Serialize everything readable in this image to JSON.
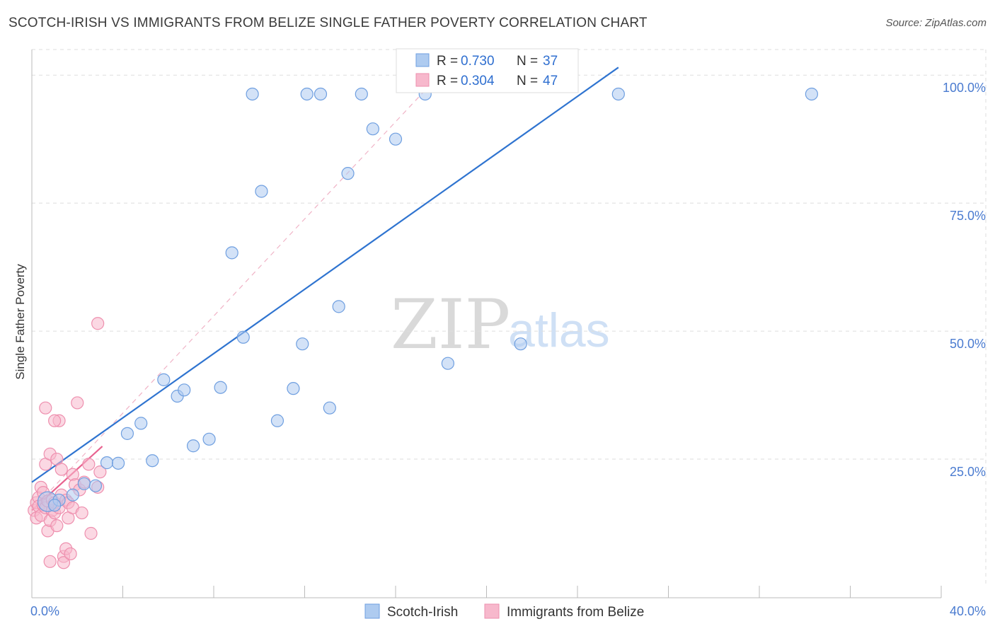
{
  "header": {
    "title": "SCOTCH-IRISH VS IMMIGRANTS FROM BELIZE SINGLE FATHER POVERTY CORRELATION CHART",
    "source": "Source: ZipAtlas.com"
  },
  "watermark": {
    "zip": "ZIP",
    "atlas": "atlas"
  },
  "legend": {
    "rows": [
      {
        "r_label": "R = ",
        "r_value": "0.730",
        "n_label": "N = ",
        "n_value": "37"
      },
      {
        "r_label": "R = ",
        "r_value": "0.304",
        "n_label": "N = ",
        "n_value": "47"
      }
    ]
  },
  "chart_data": {
    "type": "scatter",
    "title": "SCOTCH-IRISH VS IMMIGRANTS FROM BELIZE SINGLE FATHER POVERTY CORRELATION CHART",
    "xlabel": "",
    "ylabel": "Single Father Poverty",
    "xlim": [
      0,
      40
    ],
    "ylim": [
      0,
      105
    ],
    "x_tick_labels": [
      "0.0%",
      "40.0%"
    ],
    "y_ticks": [
      25,
      50,
      75,
      100
    ],
    "y_tick_labels": [
      "25.0%",
      "50.0%",
      "75.0%",
      "100.0%"
    ],
    "grid": true,
    "colors": {
      "scotch_fill": "#aecbf0",
      "scotch_stroke": "#6f9fe0",
      "scotch_line": "#2f74d0",
      "belize_fill": "#f7b8cc",
      "belize_stroke": "#ee8fae",
      "belize_line": "#e8628f"
    },
    "series": [
      {
        "name": "Scotch-Irish",
        "r": 0.73,
        "n": 37,
        "trend": {
          "x": [
            0.0,
            25.8
          ],
          "y": [
            20.5,
            101.5
          ]
        },
        "points": [
          [
            0.7,
            16.7
          ],
          [
            1.8,
            18.0
          ],
          [
            2.3,
            20.2
          ],
          [
            2.8,
            19.8
          ],
          [
            3.3,
            24.3
          ],
          [
            3.8,
            24.2
          ],
          [
            4.2,
            30.0
          ],
          [
            4.8,
            32.0
          ],
          [
            5.3,
            24.7
          ],
          [
            5.8,
            40.5
          ],
          [
            6.4,
            37.3
          ],
          [
            6.7,
            38.5
          ],
          [
            7.1,
            27.6
          ],
          [
            7.8,
            28.9
          ],
          [
            8.3,
            39.0
          ],
          [
            8.8,
            65.3
          ],
          [
            9.3,
            48.8
          ],
          [
            9.7,
            96.3
          ],
          [
            10.1,
            77.3
          ],
          [
            10.8,
            32.5
          ],
          [
            11.5,
            38.8
          ],
          [
            11.9,
            47.5
          ],
          [
            12.1,
            96.3
          ],
          [
            12.7,
            96.3
          ],
          [
            13.1,
            35.0
          ],
          [
            13.5,
            54.8
          ],
          [
            13.9,
            80.8
          ],
          [
            14.5,
            96.3
          ],
          [
            15.0,
            89.5
          ],
          [
            16.0,
            87.5
          ],
          [
            17.3,
            96.3
          ],
          [
            18.3,
            43.7
          ],
          [
            21.5,
            47.5
          ],
          [
            25.8,
            96.3
          ],
          [
            34.3,
            96.3
          ],
          [
            1.2,
            17.0
          ],
          [
            1.0,
            16.0
          ]
        ]
      },
      {
        "name": "Immigrants from Belize",
        "r": 0.304,
        "n": 47,
        "trend": {
          "x": [
            0.0,
            3.1
          ],
          "y": [
            15.0,
            27.5
          ]
        },
        "trend_dashed": {
          "x": [
            0.0,
            17.5
          ],
          "y": [
            15.0,
            98.0
          ]
        },
        "points": [
          [
            0.1,
            15.0
          ],
          [
            0.2,
            16.5
          ],
          [
            0.2,
            13.5
          ],
          [
            0.3,
            17.5
          ],
          [
            0.3,
            15.8
          ],
          [
            0.4,
            19.5
          ],
          [
            0.4,
            14.0
          ],
          [
            0.5,
            16.0
          ],
          [
            0.5,
            18.5
          ],
          [
            0.6,
            15.5
          ],
          [
            0.6,
            35.0
          ],
          [
            0.6,
            24.0
          ],
          [
            0.7,
            11.0
          ],
          [
            0.7,
            16.8
          ],
          [
            0.8,
            13.0
          ],
          [
            0.8,
            26.0
          ],
          [
            0.8,
            5.0
          ],
          [
            0.9,
            17.0
          ],
          [
            0.9,
            15.0
          ],
          [
            1.0,
            14.5
          ],
          [
            1.0,
            16.5
          ],
          [
            1.1,
            12.0
          ],
          [
            1.1,
            25.0
          ],
          [
            1.2,
            15.5
          ],
          [
            1.2,
            32.5
          ],
          [
            1.3,
            18.0
          ],
          [
            1.3,
            23.0
          ],
          [
            1.4,
            6.0
          ],
          [
            1.4,
            4.8
          ],
          [
            1.5,
            17.0
          ],
          [
            1.5,
            7.5
          ],
          [
            1.6,
            16.5
          ],
          [
            1.6,
            13.5
          ],
          [
            1.7,
            6.5
          ],
          [
            1.8,
            15.5
          ],
          [
            1.8,
            22.0
          ],
          [
            1.9,
            20.0
          ],
          [
            2.0,
            36.0
          ],
          [
            2.1,
            19.0
          ],
          [
            2.3,
            20.5
          ],
          [
            2.5,
            24.0
          ],
          [
            2.6,
            10.5
          ],
          [
            2.9,
            19.5
          ],
          [
            3.0,
            22.5
          ],
          [
            2.2,
            14.5
          ],
          [
            1.0,
            32.5
          ],
          [
            2.9,
            51.5
          ]
        ]
      }
    ],
    "legend_bottom": [
      "Scotch-Irish",
      "Immigrants from Belize"
    ]
  }
}
